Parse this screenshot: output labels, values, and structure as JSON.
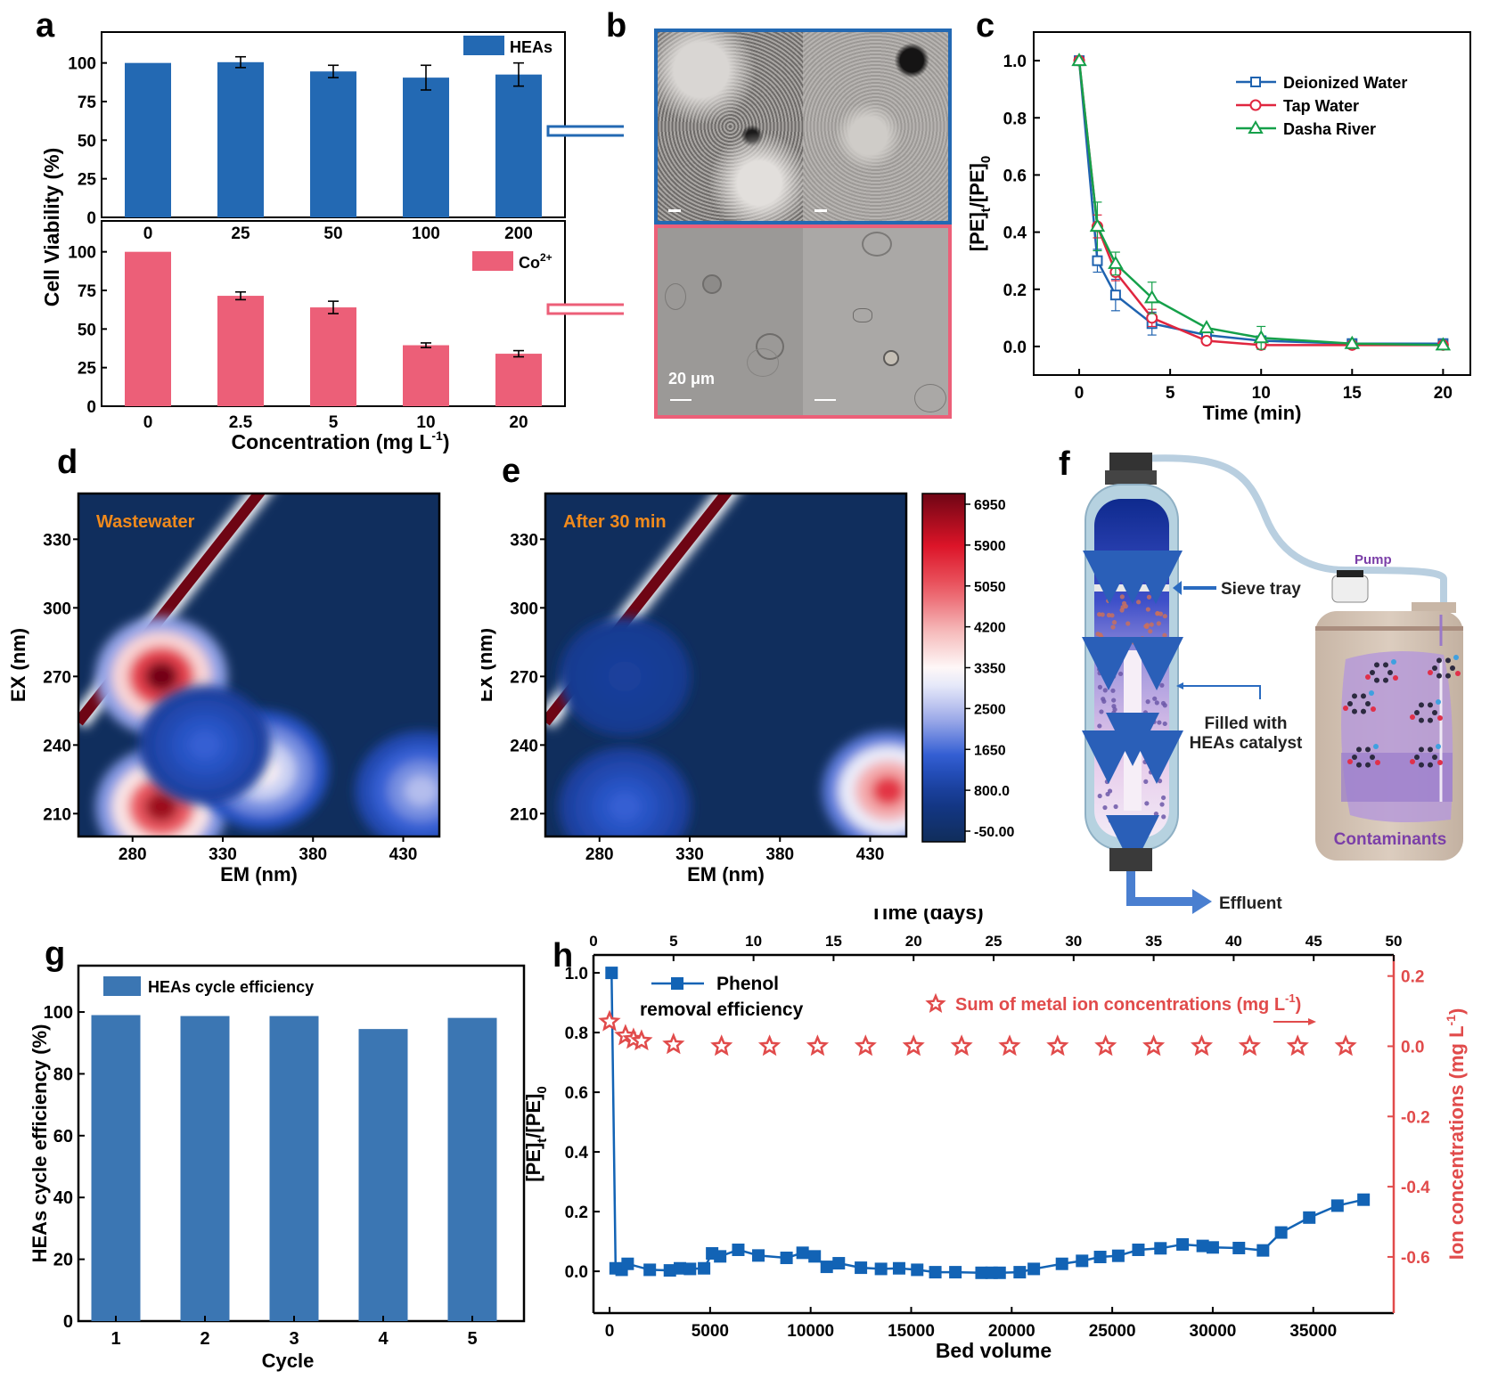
{
  "panel_letters": {
    "a": "a",
    "b": "b",
    "c": "c",
    "d": "d",
    "e": "e",
    "f": "f",
    "g": "g",
    "h": "h"
  },
  "colors": {
    "heas_blue": "#2369b3",
    "co_pink": "#ec5f78",
    "deionized": "#1f63b0",
    "tap": "#e0263f",
    "dasha": "#15a04a",
    "phenol": "#1263b5",
    "stars": "#e14b4b",
    "eem_label": "#f08a1c",
    "cycle_blue": "#3b76b3",
    "contaminants": "#7b3fa8"
  },
  "chart_data": [
    {
      "id": "a_top",
      "type": "bar",
      "title": "",
      "legend": "HEAs",
      "legend_position": "top-right",
      "categories": [
        "0",
        "25",
        "50",
        "100",
        "200"
      ],
      "values": [
        100,
        100.5,
        94.5,
        90.5,
        92.5
      ],
      "errors": [
        0,
        3.5,
        4,
        8,
        7.5
      ],
      "ylim": [
        0,
        120
      ],
      "yticks": [
        "0",
        "25",
        "50",
        "75",
        "100"
      ],
      "ylabel": "Cell Viability (%)",
      "xlabel": ""
    },
    {
      "id": "a_bottom",
      "type": "bar",
      "legend": "Co",
      "legend_sup": "2+",
      "legend_position": "top-right",
      "categories": [
        "0",
        "2.5",
        "5",
        "10",
        "20"
      ],
      "values": [
        100,
        71.5,
        64,
        39.5,
        34
      ],
      "errors": [
        0,
        2.5,
        4,
        1.5,
        2
      ],
      "ylim": [
        0,
        120
      ],
      "yticks": [
        "0",
        "25",
        "50",
        "75",
        "100"
      ],
      "xlabel": "Concentration (mg L",
      "xlabel_sup": "-1",
      "xlabel_end": ")"
    },
    {
      "id": "c",
      "type": "line",
      "xlabel": "Time (min)",
      "ylabel_main": "[PE]",
      "ylabel_sub1": "t",
      "ylabel_mid": "/[PE]",
      "ylabel_sub2": "0",
      "xlim": [
        -2.5,
        21.5
      ],
      "ylim": [
        -0.1,
        1.1
      ],
      "xticks": [
        "0",
        "5",
        "10",
        "15",
        "20"
      ],
      "yticks": [
        "0.0",
        "0.2",
        "0.4",
        "0.6",
        "0.8",
        "1.0"
      ],
      "legend_position": "top-right",
      "x": [
        0,
        1,
        2,
        4,
        7,
        10,
        15,
        20
      ],
      "series": [
        {
          "name": "Deionized Water",
          "marker": "square",
          "values": [
            1.0,
            0.3,
            0.18,
            0.08,
            0.04,
            0.02,
            0.01,
            0.01
          ],
          "errors": [
            0,
            0.04,
            0.055,
            0.04,
            0,
            0.01,
            0,
            0
          ]
        },
        {
          "name": "Tap Water",
          "marker": "circle",
          "values": [
            1.0,
            0.42,
            0.26,
            0.1,
            0.02,
            0.005,
            0.005,
            0.005
          ],
          "errors": [
            0,
            0.04,
            0.03,
            0.03,
            0,
            0.01,
            0,
            0
          ]
        },
        {
          "name": "Dasha River",
          "marker": "triangle",
          "values": [
            1.0,
            0.42,
            0.29,
            0.17,
            0.065,
            0.03,
            0.01,
            0.005
          ],
          "errors": [
            0,
            0.085,
            0.04,
            0.055,
            0,
            0.04,
            0,
            0
          ]
        }
      ]
    },
    {
      "id": "d",
      "type": "heatmap",
      "annotation": "Wastewater",
      "xlabel": "EM (nm)",
      "ylabel": "EX (nm)",
      "xlim": [
        250,
        450
      ],
      "ylim": [
        200,
        350
      ],
      "xticks": [
        "280",
        "330",
        "380",
        "430"
      ],
      "yticks": [
        "210",
        "240",
        "270",
        "300",
        "330"
      ],
      "peaks": [
        {
          "em": 296,
          "ex": 270,
          "intensity": 6900
        },
        {
          "em": 296,
          "ex": 213,
          "intensity": 6500
        },
        {
          "em": 352,
          "ex": 229,
          "intensity": 3500
        },
        {
          "em": 320,
          "ex": 240,
          "intensity": 1700
        },
        {
          "em": 440,
          "ex": 220,
          "intensity": 2600
        }
      ]
    },
    {
      "id": "e",
      "type": "heatmap",
      "annotation": "After 30 min",
      "xlabel": "EM (nm)",
      "ylabel": "EX (nm)",
      "xlim": [
        250,
        450
      ],
      "ylim": [
        200,
        350
      ],
      "xticks": [
        "280",
        "330",
        "380",
        "430"
      ],
      "yticks": [
        "210",
        "240",
        "270",
        "300",
        "330"
      ],
      "peaks": [
        {
          "em": 294,
          "ex": 213,
          "intensity": 1700
        },
        {
          "em": 294,
          "ex": 270,
          "intensity": 1000
        },
        {
          "em": 440,
          "ex": 220,
          "intensity": 5500
        }
      ],
      "colorbar": {
        "ticks": [
          "6950",
          "5900",
          "5050",
          "4200",
          "3350",
          "2500",
          "1650",
          "800.0",
          "-50.00"
        ],
        "range": [
          -50,
          6950
        ]
      }
    },
    {
      "id": "g",
      "type": "bar",
      "legend": "HEAs cycle efficiency",
      "legend_position": "top-left",
      "categories": [
        "1",
        "2",
        "3",
        "4",
        "5"
      ],
      "values": [
        99,
        98.7,
        98.7,
        94.5,
        98.1
      ],
      "ylim": [
        0,
        115
      ],
      "yticks": [
        "0",
        "20",
        "40",
        "60",
        "80",
        "100"
      ],
      "ylabel": "HEAs cycle efficiency (%)",
      "xlabel": "Cycle"
    },
    {
      "id": "h",
      "type": "line",
      "xlabel": "Bed volume",
      "x2label": "Time (days)",
      "ylabel_main": "[PE]",
      "ylabel_sub1": "t",
      "ylabel_mid": "/[PE]",
      "ylabel_sub2": "0",
      "y2label": "Ion concentrations (mg L",
      "y2label_sup": "-1",
      "y2label_end": ")",
      "xlim": [
        -800,
        39000
      ],
      "ylim": [
        -0.14,
        1.06
      ],
      "x2lim": [
        0,
        50
      ],
      "y2lim": [
        -0.76,
        0.26
      ],
      "xticks": [
        "0",
        "5000",
        "10000",
        "15000",
        "20000",
        "25000",
        "30000",
        "35000"
      ],
      "x2ticks": [
        "0",
        "5",
        "10",
        "15",
        "20",
        "25",
        "30",
        "35",
        "40",
        "45",
        "50"
      ],
      "yticks": [
        "0.0",
        "0.2",
        "0.4",
        "0.6",
        "0.8",
        "1.0"
      ],
      "y2ticks": [
        "-0.6",
        "-0.4",
        "-0.2",
        "0.0",
        "0.2"
      ],
      "phenol": {
        "name1": "Phenol",
        "name2": "removal efficiency",
        "x": [
          100,
          300,
          600,
          900,
          2000,
          3000,
          3500,
          4000,
          4700,
          5100,
          5500,
          6400,
          7400,
          8800,
          9600,
          10200,
          10800,
          11400,
          12500,
          13500,
          14400,
          15300,
          16200,
          17200,
          18500,
          19000,
          19400,
          20400,
          21100,
          22500,
          23500,
          24400,
          25300,
          26300,
          27400,
          28500,
          29500,
          30000,
          31300,
          32500,
          33400,
          34800,
          36200,
          37500
        ],
        "values": [
          1.0,
          0.01,
          0.005,
          0.025,
          0.005,
          0.003,
          0.01,
          0.008,
          0.01,
          0.06,
          0.05,
          0.072,
          0.053,
          0.045,
          0.062,
          0.05,
          0.015,
          0.027,
          0.012,
          0.008,
          0.01,
          0.005,
          -0.003,
          -0.003,
          -0.005,
          -0.005,
          -0.005,
          -0.003,
          0.008,
          0.025,
          0.035,
          0.048,
          0.052,
          0.072,
          0.077,
          0.09,
          0.085,
          0.08,
          0.078,
          0.07,
          0.13,
          0.18,
          0.22,
          0.24
        ]
      },
      "metal_ions": {
        "name": "Sum of metal ion concentrations (mg L",
        "name_sup": "-1",
        "name_end": ")",
        "x_days": [
          1,
          2,
          2.5,
          3,
          5,
          8,
          11,
          14,
          17,
          20,
          23,
          26,
          29,
          32,
          35,
          38,
          41,
          44,
          47
        ],
        "values": [
          0.07,
          0.03,
          0.02,
          0.015,
          0.005,
          0,
          0,
          0,
          0,
          0,
          0,
          0,
          0,
          0,
          0,
          0,
          0,
          0,
          0
        ]
      }
    }
  ],
  "panel_b": {
    "scale_bar_label": "20 μm"
  },
  "panel_f": {
    "sieve_tray": "Sieve tray",
    "filled_line1": "Filled with",
    "filled_line2": "HEAs catalyst",
    "pump": "Pump",
    "contaminants": "Contaminants",
    "effluent": "Effluent"
  }
}
